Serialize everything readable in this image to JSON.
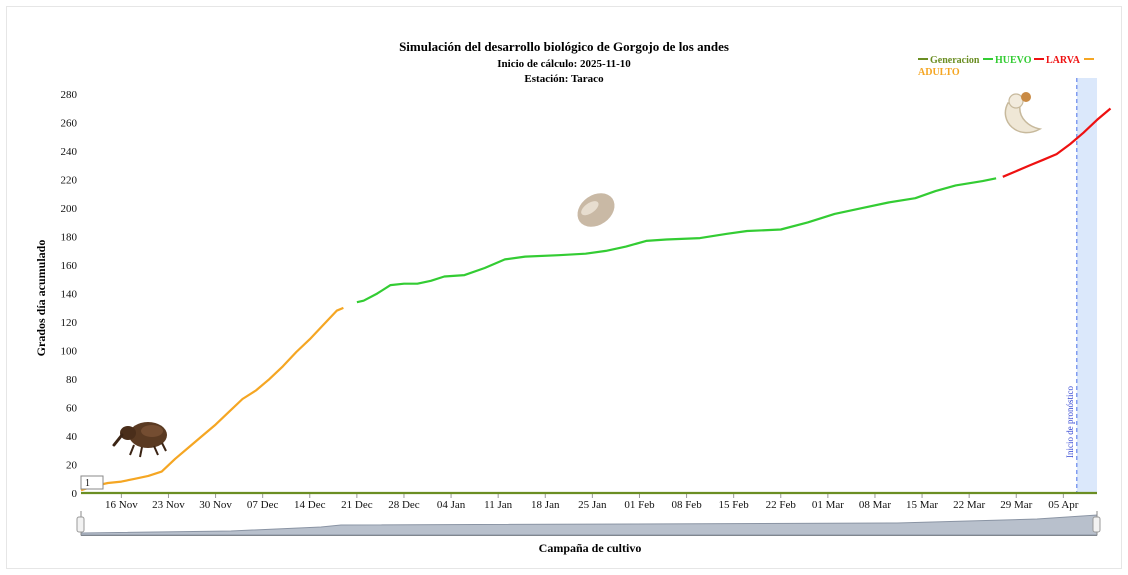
{
  "chart_data": {
    "type": "line",
    "title": "Simulación del desarrollo biológico de Gorgojo de los andes",
    "subtitle_lines": [
      "Inicio de cálculo: 2025-11-10",
      "Estación: Taraco"
    ],
    "xlabel": "Campaña de cultivo",
    "ylabel": "Grados día acumulado",
    "ylim": [
      0,
      290
    ],
    "y_ticks": [
      0,
      20,
      40,
      60,
      80,
      100,
      120,
      140,
      160,
      180,
      200,
      220,
      240,
      260,
      280
    ],
    "x_range": [
      "2025-11-10",
      "2026-04-10"
    ],
    "x_ticks": [
      {
        "date": "2025-11-16",
        "label": "16 Nov"
      },
      {
        "date": "2025-11-23",
        "label": "23 Nov"
      },
      {
        "date": "2025-11-30",
        "label": "30 Nov"
      },
      {
        "date": "2025-12-07",
        "label": "07 Dec"
      },
      {
        "date": "2025-12-14",
        "label": "14 Dec"
      },
      {
        "date": "2025-12-21",
        "label": "21 Dec"
      },
      {
        "date": "2025-12-28",
        "label": "28 Dec"
      },
      {
        "date": "2026-01-04",
        "label": "04 Jan"
      },
      {
        "date": "2026-01-11",
        "label": "11 Jan"
      },
      {
        "date": "2026-01-18",
        "label": "18 Jan"
      },
      {
        "date": "2026-01-25",
        "label": "25 Jan"
      },
      {
        "date": "2026-02-01",
        "label": "01 Feb"
      },
      {
        "date": "2026-02-08",
        "label": "08 Feb"
      },
      {
        "date": "2026-02-15",
        "label": "15 Feb"
      },
      {
        "date": "2026-02-22",
        "label": "22 Feb"
      },
      {
        "date": "2026-03-01",
        "label": "01 Mar"
      },
      {
        "date": "2026-03-08",
        "label": "08 Mar"
      },
      {
        "date": "2026-03-15",
        "label": "15 Mar"
      },
      {
        "date": "2026-03-22",
        "label": "22 Mar"
      },
      {
        "date": "2026-03-29",
        "label": "29 Mar"
      },
      {
        "date": "2026-04-05",
        "label": "05 Apr"
      }
    ],
    "legend_position": "top-right",
    "legend": [
      {
        "name": "Generacion",
        "color": "#6b8e23"
      },
      {
        "name": "HUEVO",
        "color": "#33cc33"
      },
      {
        "name": "LARVA",
        "color": "#ee1111"
      },
      {
        "name": "ADULTO",
        "color": "#f5a623"
      }
    ],
    "series": [
      {
        "name": "Generacion",
        "color": "#6b8e23",
        "points": [
          [
            "2025-11-10",
            0
          ],
          [
            "2026-04-10",
            0
          ]
        ]
      },
      {
        "name": "ADULTO",
        "color": "#f5a623",
        "points": [
          [
            "2025-11-10",
            2
          ],
          [
            "2025-11-12",
            5
          ],
          [
            "2025-11-14",
            7
          ],
          [
            "2025-11-16",
            8
          ],
          [
            "2025-11-18",
            10
          ],
          [
            "2025-11-20",
            12
          ],
          [
            "2025-11-22",
            15
          ],
          [
            "2025-11-24",
            24
          ],
          [
            "2025-11-26",
            32
          ],
          [
            "2025-11-28",
            40
          ],
          [
            "2025-11-30",
            48
          ],
          [
            "2025-12-02",
            57
          ],
          [
            "2025-12-04",
            66
          ],
          [
            "2025-12-06",
            72
          ],
          [
            "2025-12-08",
            80
          ],
          [
            "2025-12-10",
            89
          ],
          [
            "2025-12-12",
            99
          ],
          [
            "2025-12-14",
            108
          ],
          [
            "2025-12-16",
            118
          ],
          [
            "2025-12-18",
            128
          ],
          [
            "2025-12-19",
            130
          ]
        ]
      },
      {
        "name": "HUEVO",
        "color": "#33cc33",
        "points": [
          [
            "2025-12-21",
            134
          ],
          [
            "2025-12-22",
            135
          ],
          [
            "2025-12-24",
            140
          ],
          [
            "2025-12-26",
            146
          ],
          [
            "2025-12-28",
            147
          ],
          [
            "2025-12-30",
            147
          ],
          [
            "2026-01-01",
            149
          ],
          [
            "2026-01-03",
            152
          ],
          [
            "2026-01-06",
            153
          ],
          [
            "2026-01-09",
            158
          ],
          [
            "2026-01-12",
            164
          ],
          [
            "2026-01-15",
            166
          ],
          [
            "2026-01-20",
            167
          ],
          [
            "2026-01-24",
            168
          ],
          [
            "2026-01-27",
            170
          ],
          [
            "2026-01-30",
            173
          ],
          [
            "2026-02-02",
            177
          ],
          [
            "2026-02-05",
            178
          ],
          [
            "2026-02-10",
            179
          ],
          [
            "2026-02-14",
            182
          ],
          [
            "2026-02-17",
            184
          ],
          [
            "2026-02-22",
            185
          ],
          [
            "2026-02-26",
            190
          ],
          [
            "2026-03-02",
            196
          ],
          [
            "2026-03-06",
            200
          ],
          [
            "2026-03-10",
            204
          ],
          [
            "2026-03-14",
            207
          ],
          [
            "2026-03-17",
            212
          ],
          [
            "2026-03-20",
            216
          ],
          [
            "2026-03-24",
            219
          ],
          [
            "2026-03-26",
            221
          ]
        ]
      },
      {
        "name": "LARVA",
        "color": "#ee1111",
        "points": [
          [
            "2026-03-27",
            222
          ],
          [
            "2026-03-29",
            226
          ],
          [
            "2026-03-31",
            230
          ],
          [
            "2026-04-02",
            234
          ],
          [
            "2026-04-04",
            238
          ],
          [
            "2026-04-06",
            245
          ],
          [
            "2026-04-08",
            253
          ],
          [
            "2026-04-10",
            262
          ],
          [
            "2026-04-12",
            270
          ]
        ]
      }
    ],
    "annotations": {
      "forecast_label": "Inicio de pronóstico",
      "forecast_start": "2026-04-07"
    },
    "navigator": {
      "start_label": "1"
    }
  }
}
